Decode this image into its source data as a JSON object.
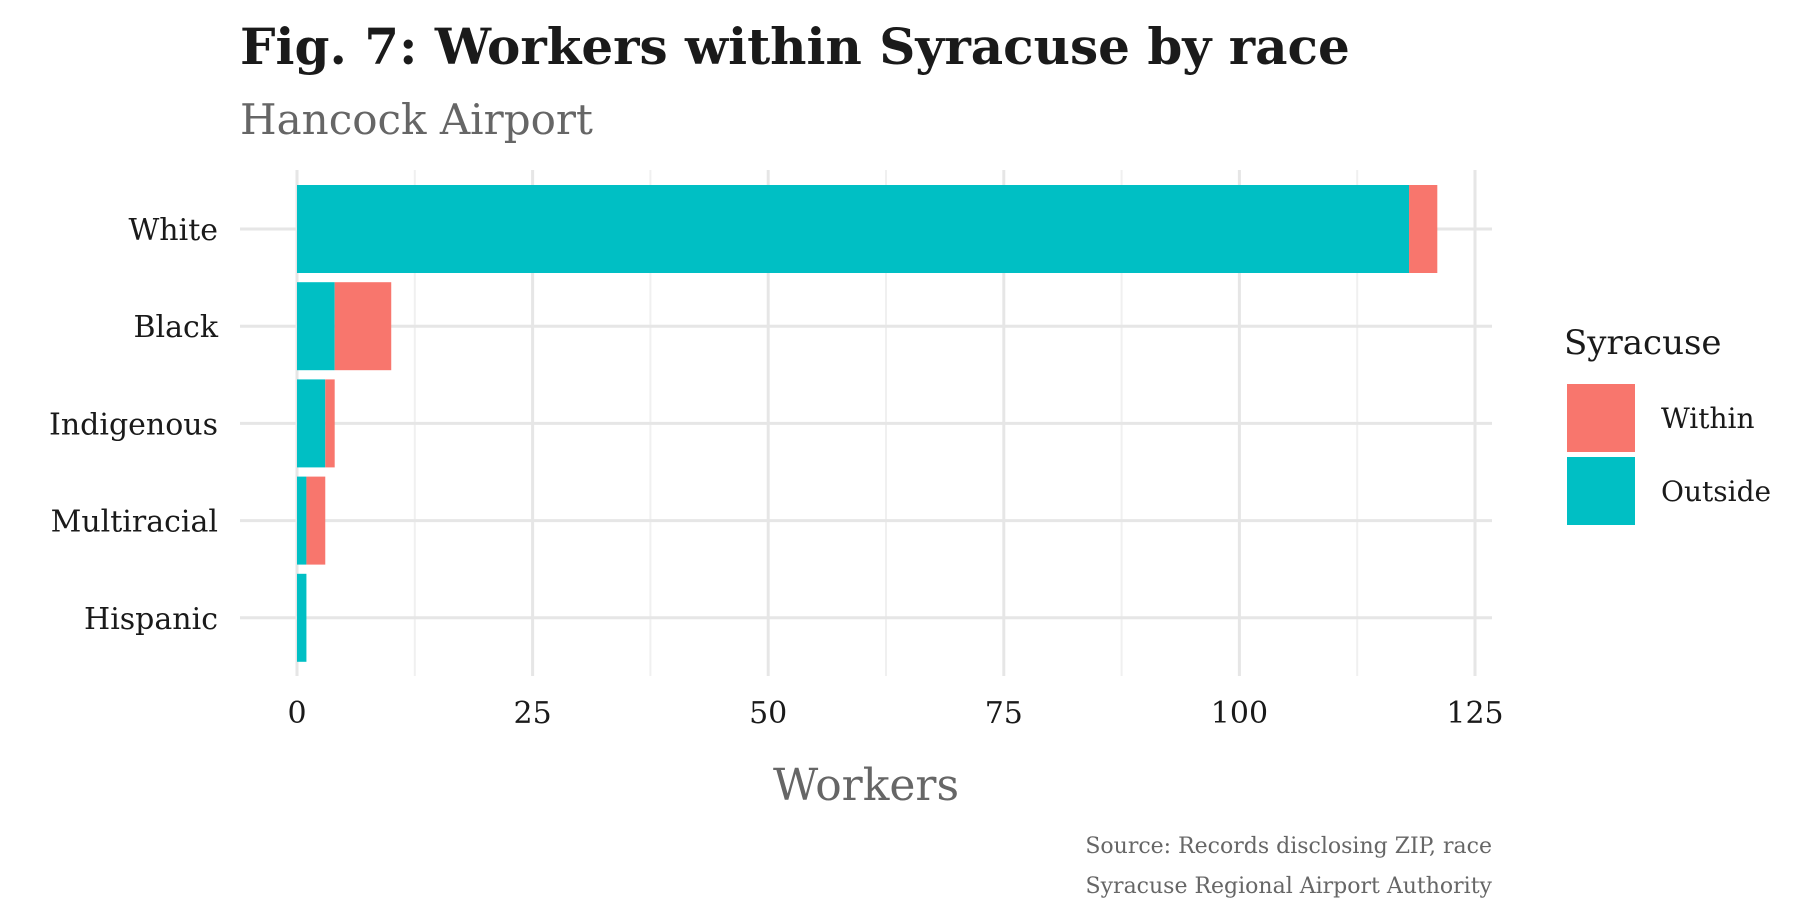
{
  "chart_data": {
    "type": "bar",
    "orientation": "horizontal",
    "stacked": true,
    "title": "Fig. 7: Workers within Syracuse by race",
    "subtitle": "Hancock Airport",
    "xlabel": "Workers",
    "ylabel": "",
    "categories": [
      "White",
      "Black",
      "Indigenous",
      "Multiracial",
      "Hispanic"
    ],
    "series": [
      {
        "name": "Outside",
        "color": "#00BFC4",
        "values": [
          118,
          4,
          3,
          1,
          1
        ]
      },
      {
        "name": "Within",
        "color": "#F8766D",
        "values": [
          3,
          6,
          1,
          2,
          0
        ]
      }
    ],
    "xlim": [
      0,
      125
    ],
    "xticks": [
      "0",
      "25",
      "50",
      "75",
      "100",
      "125"
    ],
    "grid": true,
    "legend": {
      "title": "Syracuse",
      "placement": "right",
      "entries": [
        {
          "label": "Within",
          "color": "#F8766D"
        },
        {
          "label": "Outside",
          "color": "#00BFC4"
        }
      ]
    },
    "caption": [
      "Source: Records disclosing ZIP, race",
      "Syracuse Regional Airport Authority"
    ]
  }
}
